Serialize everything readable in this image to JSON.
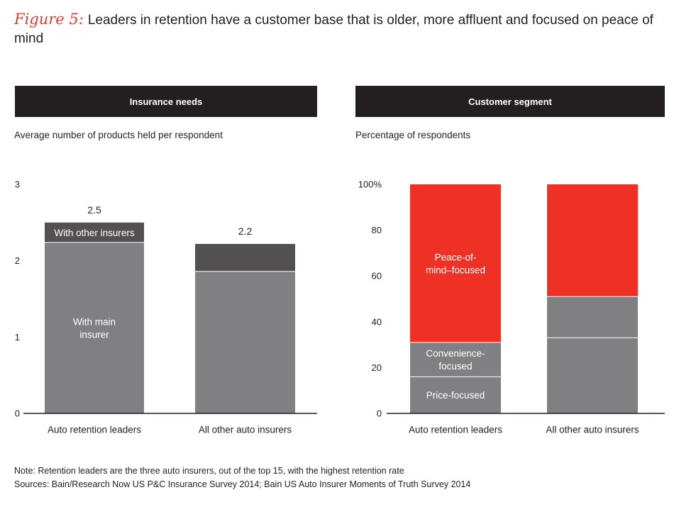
{
  "figure": {
    "label": "Figure 5:",
    "title": "Leaders in retention have a customer base that is older, more affluent and focused on peace of mind"
  },
  "panels": {
    "left": {
      "header": "Insurance needs",
      "subtitle": "Average number of products held per respondent"
    },
    "right": {
      "header": "Customer segment",
      "subtitle": "Percentage of respondents"
    }
  },
  "notes": {
    "note": "Note: Retention leaders are the three auto insurers, out of the top 15, with the highest retention rate",
    "sources": "Sources: Bain/Research Now US P&C Insurance Survey 2014; Bain US Auto Insurer Moments of Truth Survey 2014"
  },
  "colors": {
    "dark_bar": "#525050",
    "gray_bar": "#808082",
    "red_bar": "#ee3124",
    "axis": "#231f20",
    "header_bg": "#231f20"
  },
  "chart_data": [
    {
      "type": "bar",
      "stacked": true,
      "title": "Insurance needs",
      "ylabel": "Average number of products held per respondent",
      "categories": [
        "Auto retention leaders",
        "All other auto insurers"
      ],
      "series": [
        {
          "name": "With main insurer",
          "label_lines": [
            "With main",
            "insurer"
          ],
          "values": [
            2.24,
            1.86
          ],
          "color": "#808082"
        },
        {
          "name": "With other insurers",
          "label_lines": [
            "With other insurers"
          ],
          "values": [
            0.26,
            0.36
          ],
          "color": "#525050"
        }
      ],
      "totals": [
        "2.5",
        "2.2"
      ],
      "ylim": [
        0,
        3
      ],
      "yticks": [
        "0",
        "1",
        "2",
        "3"
      ]
    },
    {
      "type": "bar",
      "stacked": true,
      "title": "Customer segment",
      "ylabel": "Percentage of respondents",
      "categories": [
        "Auto retention leaders",
        "All other auto insurers"
      ],
      "series": [
        {
          "name": "Price-focused",
          "label_lines": [
            "Price-focused"
          ],
          "values": [
            16,
            33
          ],
          "color": "#808082"
        },
        {
          "name": "Convenience-focused",
          "label_lines": [
            "Convenience-",
            "focused"
          ],
          "values": [
            15,
            18
          ],
          "color": "#808082"
        },
        {
          "name": "Peace-of-mind–focused",
          "label_lines": [
            "Peace-of-",
            "mind–focused"
          ],
          "values": [
            69,
            49
          ],
          "color": "#ee3124"
        }
      ],
      "ylim": [
        0,
        100
      ],
      "yticks": [
        "0",
        "20",
        "40",
        "60",
        "80",
        "100%"
      ]
    }
  ]
}
